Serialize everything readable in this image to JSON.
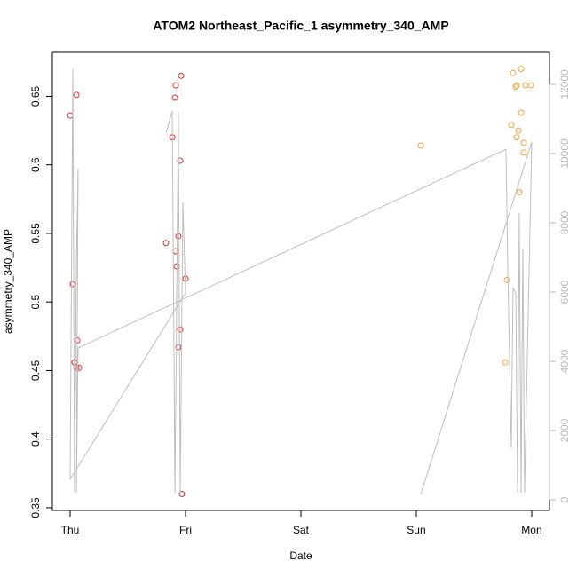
{
  "chart_data": {
    "type": "scatter",
    "title": "ATOM2 Northeast_Pacific_1 asymmetry_340_AMP",
    "x_label": "Date",
    "y_label": "asymmetry_340_AMP",
    "xlim": [
      -0.154,
      4.154
    ],
    "xticks": [
      {
        "value": 0,
        "label": "Thu"
      },
      {
        "value": 1,
        "label": "Fri"
      },
      {
        "value": 2,
        "label": "Sat"
      },
      {
        "value": 3,
        "label": "Sun"
      },
      {
        "value": 4,
        "label": "Mon"
      }
    ],
    "ylim": [
      0.348,
      0.682
    ],
    "yticks": [
      0.35,
      0.4,
      0.45,
      0.5,
      0.55,
      0.6,
      0.65
    ],
    "y2lim": [
      -308,
      12923
    ],
    "y2ticks": [
      0,
      2000,
      4000,
      6000,
      8000,
      10000,
      12000
    ],
    "series": [
      {
        "type": "scatter",
        "color": "#e8292b",
        "x": [
          0,
          0.054,
          0.023,
          0.038,
          0.062,
          0.054,
          0.077,
          0.831,
          0.885,
          0.908,
          0.915,
          0.962,
          0.954,
          0.938,
          0.915,
          0.923,
          1.0,
          0.954,
          0.938,
          0.969
        ],
        "values": [
          0.636,
          0.651,
          0.513,
          0.456,
          0.472,
          0.452,
          0.452,
          0.543,
          0.62,
          0.649,
          0.658,
          0.665,
          0.603,
          0.548,
          0.537,
          0.526,
          0.517,
          0.48,
          0.467,
          0.36
        ]
      },
      {
        "type": "scatter",
        "color": "#f4a13a",
        "x": [
          3.038,
          3.769,
          3.785,
          3.823,
          3.838,
          3.862,
          3.869,
          3.869,
          3.885,
          3.908,
          3.908,
          3.892,
          3.931,
          3.931,
          3.946,
          3.992
        ],
        "values": [
          0.614,
          0.456,
          0.516,
          0.629,
          0.667,
          0.657,
          0.658,
          0.62,
          0.625,
          0.67,
          0.638,
          0.58,
          0.616,
          0.609,
          0.658,
          0.658
        ]
      },
      {
        "type": "line",
        "axis": "y2",
        "color": "#bebebe",
        "x": [
          0.831,
          0.885,
          0.908,
          0.938,
          0.954,
          0.977,
          1.0,
          0,
          0.023,
          0.038,
          0.054,
          0.069,
          0.054,
          0.069,
          3.777,
          3.792,
          3.823,
          3.838,
          3.862,
          3.877,
          3.892,
          3.908,
          3.923,
          3.938,
          4.0,
          3.038
        ],
        "values": [
          10590,
          11231,
          205,
          11231,
          205,
          8590,
          5974,
          590,
          12436,
          205,
          6744,
          9564,
          205,
          4385,
          10128,
          6744,
          1487,
          6103,
          5974,
          205,
          8282,
          205,
          7256,
          205,
          10333,
          154
        ]
      }
    ]
  }
}
